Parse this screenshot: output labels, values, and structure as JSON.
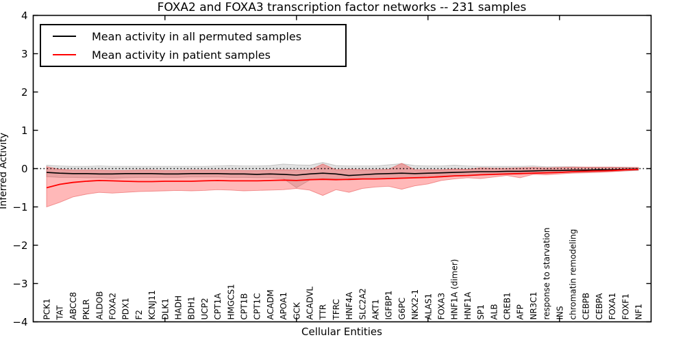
{
  "chart_data": {
    "type": "line",
    "title": "FOXA2 and FOXA3 transcription factor networks -- 231 samples",
    "xlabel": "Cellular Entities",
    "ylabel": "Inferred Activity",
    "ylim": [
      -4,
      4
    ],
    "yticks": [
      -4,
      -3,
      -2,
      -1,
      0,
      1,
      2,
      3,
      4
    ],
    "x_major_ticks": [
      10,
      20,
      30,
      40
    ],
    "grid": false,
    "legend_position": "upper left",
    "zero_line": {
      "y": 0,
      "style": "dotted",
      "color": "#000000"
    },
    "categories": [
      "PCK1",
      "TAT",
      "ABCC8",
      "PKLR",
      "ALDOB",
      "FOXA2",
      "PDX1",
      "F2",
      "KCNJ11",
      "DLK1",
      "HADH",
      "BDH1",
      "UCP2",
      "CPT1A",
      "HMGCS1",
      "CPT1B",
      "CPT1C",
      "ACADM",
      "APOA1",
      "GCK",
      "ACADVL",
      "TTR",
      "TFRC",
      "HNF4A",
      "SLC2A2",
      "AKT1",
      "IGFBP1",
      "G6PC",
      "NKX2-1",
      "ALAS1",
      "FOXA3",
      "HNF1A (dimer)",
      "HNF1A",
      "SP1",
      "ALB",
      "CREB1",
      "AFP",
      "NR3C1",
      "response to starvation",
      "INS",
      "chromatin remodeling",
      "CEBPB",
      "CEBPA",
      "FOXA1",
      "FOXF1",
      "NF1"
    ],
    "series": [
      {
        "name": "Mean activity in all permuted samples",
        "color": "#000000",
        "band_color": "rgba(0,0,0,0.12)",
        "band_edge": "rgba(0,0,0,0.18)",
        "values": [
          -0.1,
          -0.12,
          -0.13,
          -0.13,
          -0.14,
          -0.14,
          -0.13,
          -0.13,
          -0.13,
          -0.14,
          -0.14,
          -0.13,
          -0.13,
          -0.13,
          -0.14,
          -0.14,
          -0.15,
          -0.14,
          -0.15,
          -0.17,
          -0.14,
          -0.12,
          -0.14,
          -0.18,
          -0.16,
          -0.14,
          -0.13,
          -0.12,
          -0.13,
          -0.12,
          -0.11,
          -0.1,
          -0.09,
          -0.08,
          -0.08,
          -0.07,
          -0.07,
          -0.06,
          -0.05,
          -0.05,
          -0.04,
          -0.04,
          -0.03,
          -0.03,
          -0.02,
          -0.01
        ],
        "upper": [
          0.09,
          0.07,
          0.06,
          0.06,
          0.07,
          0.06,
          0.06,
          0.06,
          0.06,
          0.06,
          0.06,
          0.06,
          0.06,
          0.07,
          0.08,
          0.07,
          0.07,
          0.08,
          0.12,
          0.1,
          0.09,
          0.16,
          0.08,
          0.07,
          0.07,
          0.07,
          0.1,
          0.13,
          0.08,
          0.07,
          0.07,
          0.09,
          0.07,
          0.06,
          0.06,
          0.06,
          0.06,
          0.07,
          0.05,
          0.05,
          0.05,
          0.04,
          0.04,
          0.04,
          0.04,
          0.03
        ],
        "lower": [
          -0.21,
          -0.23,
          -0.23,
          -0.24,
          -0.24,
          -0.25,
          -0.24,
          -0.23,
          -0.23,
          -0.23,
          -0.23,
          -0.22,
          -0.22,
          -0.22,
          -0.23,
          -0.23,
          -0.24,
          -0.24,
          -0.26,
          -0.5,
          -0.3,
          -0.26,
          -0.27,
          -0.3,
          -0.28,
          -0.26,
          -0.25,
          -0.24,
          -0.24,
          -0.23,
          -0.22,
          -0.2,
          -0.19,
          -0.17,
          -0.16,
          -0.15,
          -0.14,
          -0.13,
          -0.12,
          -0.11,
          -0.1,
          -0.09,
          -0.08,
          -0.07,
          -0.06,
          -0.05
        ]
      },
      {
        "name": "Mean activity in patient samples",
        "color": "#ff0000",
        "band_color": "rgba(255,0,0,0.28)",
        "band_edge": "rgba(230,70,70,0.55)",
        "values": [
          -0.5,
          -0.41,
          -0.36,
          -0.33,
          -0.31,
          -0.32,
          -0.33,
          -0.34,
          -0.34,
          -0.33,
          -0.33,
          -0.33,
          -0.32,
          -0.31,
          -0.32,
          -0.32,
          -0.32,
          -0.31,
          -0.3,
          -0.31,
          -0.29,
          -0.28,
          -0.29,
          -0.28,
          -0.27,
          -0.27,
          -0.26,
          -0.25,
          -0.24,
          -0.23,
          -0.21,
          -0.19,
          -0.18,
          -0.16,
          -0.15,
          -0.14,
          -0.13,
          -0.12,
          -0.11,
          -0.1,
          -0.08,
          -0.07,
          -0.06,
          -0.05,
          -0.03,
          -0.02
        ],
        "upper": [
          0.05,
          -0.02,
          -0.04,
          -0.04,
          -0.04,
          -0.05,
          -0.05,
          -0.04,
          -0.04,
          -0.05,
          -0.05,
          -0.04,
          -0.04,
          -0.04,
          -0.04,
          -0.05,
          -0.05,
          -0.04,
          -0.03,
          -0.04,
          -0.04,
          0.12,
          -0.03,
          -0.02,
          -0.03,
          -0.03,
          -0.02,
          0.14,
          -0.03,
          -0.03,
          -0.03,
          -0.01,
          -0.02,
          0.02,
          0.01,
          0.01,
          0.02,
          0.03,
          0.02,
          0.03,
          0.04,
          0.04,
          0.04,
          0.04,
          0.03,
          0.03
        ],
        "lower": [
          -1.0,
          -0.88,
          -0.74,
          -0.67,
          -0.62,
          -0.64,
          -0.62,
          -0.6,
          -0.59,
          -0.58,
          -0.57,
          -0.58,
          -0.57,
          -0.55,
          -0.56,
          -0.58,
          -0.57,
          -0.56,
          -0.55,
          -0.52,
          -0.56,
          -0.7,
          -0.55,
          -0.62,
          -0.52,
          -0.48,
          -0.46,
          -0.54,
          -0.45,
          -0.4,
          -0.31,
          -0.27,
          -0.24,
          -0.26,
          -0.22,
          -0.18,
          -0.24,
          -0.15,
          -0.16,
          -0.14,
          -0.12,
          -0.11,
          -0.1,
          -0.08,
          -0.06,
          -0.04
        ]
      }
    ]
  }
}
